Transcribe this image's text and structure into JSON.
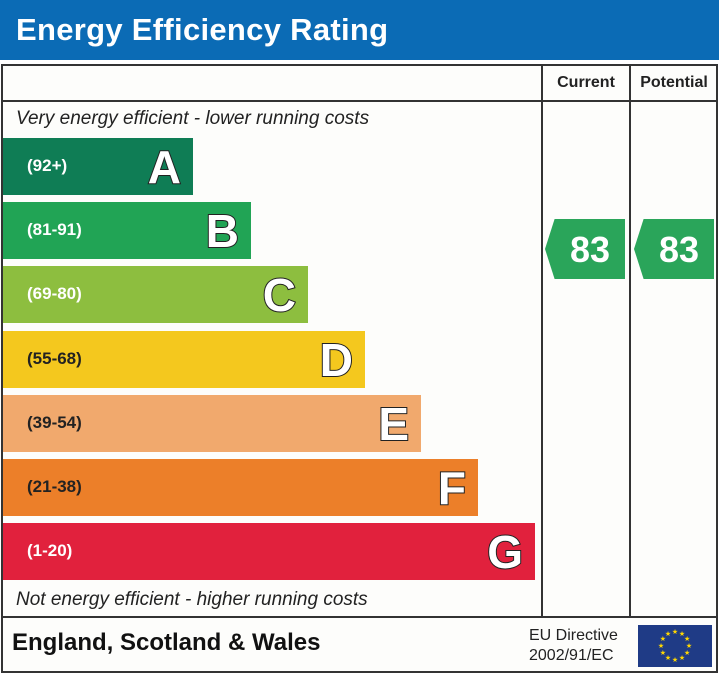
{
  "title": "Energy Efficiency Rating",
  "columns": {
    "current": "Current",
    "potential": "Potential"
  },
  "top_note": "Very energy efficient - lower running costs",
  "bottom_note": "Not energy efficient - higher running costs",
  "footer": {
    "region": "England, Scotland & Wales",
    "directive_line1": "EU Directive",
    "directive_line2": "2002/91/EC",
    "flag": "eu-flag"
  },
  "chart_data": {
    "type": "bar",
    "categories": [
      "A",
      "B",
      "C",
      "D",
      "E",
      "F",
      "G"
    ],
    "ranges": [
      "(92+)",
      "(81-91)",
      "(69-80)",
      "(55-68)",
      "(39-54)",
      "(21-38)",
      "(1-20)"
    ],
    "colors": [
      "#0f7d55",
      "#21a455",
      "#8dbe3f",
      "#f4c81e",
      "#f1a96d",
      "#ec7f29",
      "#e1213d"
    ],
    "current": 83,
    "potential": 83,
    "current_band": "B",
    "potential_band": "B",
    "arrow_color": "#2aa55a"
  }
}
